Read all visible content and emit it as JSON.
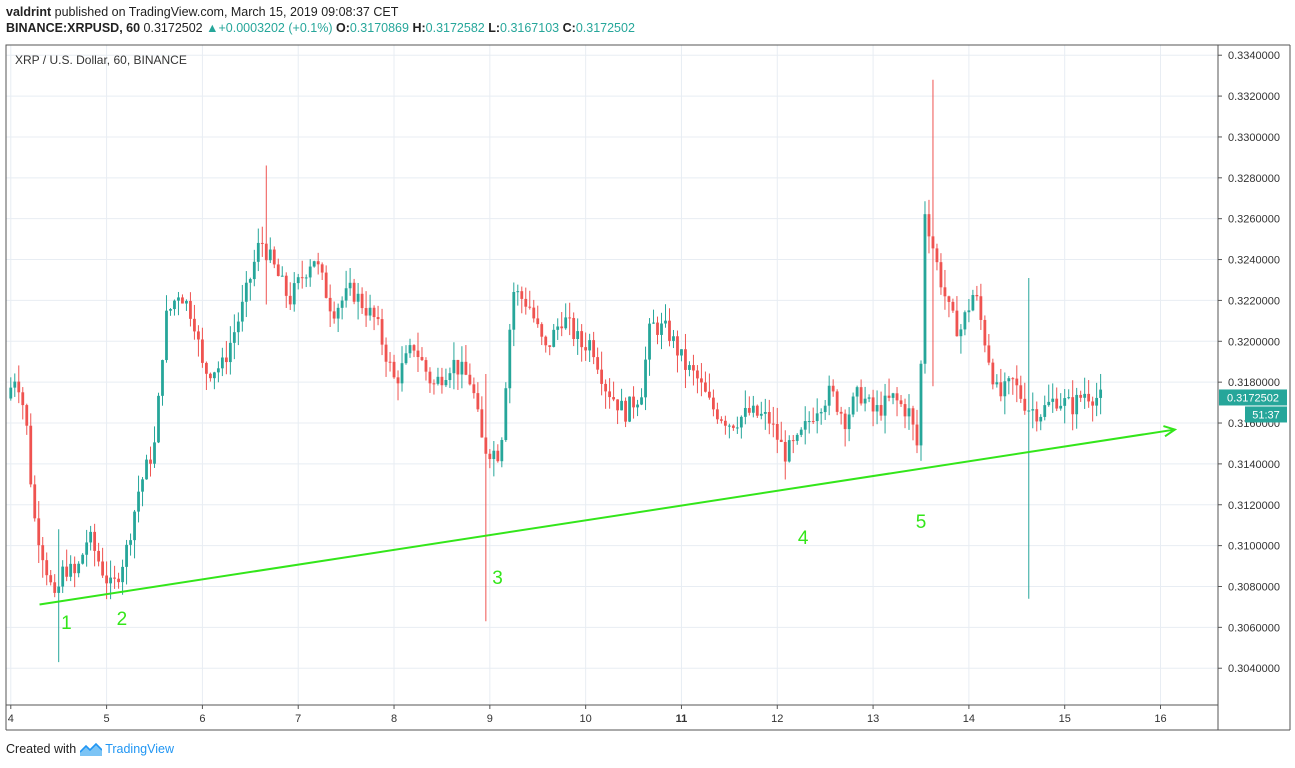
{
  "header": {
    "user": "valdrint",
    "published": " published on TradingView.com, March 15, 2019 09:08:37 CET",
    "symbol": "BINANCE:XRPUSD, 60",
    "last": "0.3172502",
    "change": "+0.0003202 (+0.1%)",
    "o_label": "O:",
    "o_val": "0.3170869",
    "h_label": "H:",
    "h_val": "0.3172582",
    "l_label": "L:",
    "l_val": "0.3167103",
    "c_label": "C:",
    "c_val": "0.3172502"
  },
  "legend_title": "XRP / U.S. Dollar, 60, BINANCE",
  "footer": {
    "created": "Created with",
    "brand": "TradingView",
    "logo_icon": "tradingview-logo-icon"
  },
  "colors": {
    "up": "#26a69a",
    "down": "#ef5350",
    "trend": "#33e61a",
    "grid": "#e8edf3",
    "price_tag": "#26a69a"
  },
  "price_tag": {
    "price": "0.3172502",
    "countdown": "51:37"
  },
  "chart_data": {
    "type": "candlestick",
    "x_ticks": [
      "4",
      "5",
      "6",
      "7",
      "8",
      "9",
      "10",
      "11",
      "12",
      "13",
      "14",
      "15",
      "16"
    ],
    "y_ticks": [
      "0.3340000",
      "0.3320000",
      "0.3300000",
      "0.3280000",
      "0.3260000",
      "0.3240000",
      "0.3220000",
      "0.3200000",
      "0.3180000",
      "0.3160000",
      "0.3140000",
      "0.3120000",
      "0.3100000",
      "0.3080000",
      "0.3060000",
      "0.3040000"
    ],
    "ylim": [
      0.3022,
      0.3345
    ],
    "xlim": [
      3.95,
      16.6
    ],
    "trendline": {
      "start": [
        4.3,
        0.30712
      ],
      "end": [
        16.15,
        0.31568
      ]
    },
    "annotations": [
      {
        "text": "1",
        "x": 4.58,
        "y": 0.30592
      },
      {
        "text": "2",
        "x": 5.16,
        "y": 0.30612
      },
      {
        "text": "3",
        "x": 9.08,
        "y": 0.30812
      },
      {
        "text": "4",
        "x": 12.27,
        "y": 0.31007
      },
      {
        "text": "5",
        "x": 13.5,
        "y": 0.31087
      }
    ],
    "anchors": [
      [
        4.0,
        0.3172
      ],
      [
        4.1,
        0.3185
      ],
      [
        4.2,
        0.3162
      ],
      [
        4.28,
        0.3115
      ],
      [
        4.42,
        0.3088
      ],
      [
        4.5,
        0.3072
      ],
      [
        4.6,
        0.309
      ],
      [
        4.72,
        0.3085
      ],
      [
        4.85,
        0.3105
      ],
      [
        5.0,
        0.3088
      ],
      [
        5.1,
        0.3078
      ],
      [
        5.25,
        0.3098
      ],
      [
        5.38,
        0.3128
      ],
      [
        5.55,
        0.315
      ],
      [
        5.65,
        0.321
      ],
      [
        5.8,
        0.3225
      ],
      [
        5.95,
        0.3212
      ],
      [
        6.05,
        0.3185
      ],
      [
        6.25,
        0.3188
      ],
      [
        6.45,
        0.3215
      ],
      [
        6.65,
        0.325
      ],
      [
        6.8,
        0.3235
      ],
      [
        6.95,
        0.322
      ],
      [
        7.2,
        0.3242
      ],
      [
        7.4,
        0.3215
      ],
      [
        7.6,
        0.3225
      ],
      [
        7.85,
        0.321
      ],
      [
        8.05,
        0.318
      ],
      [
        8.25,
        0.3198
      ],
      [
        8.45,
        0.3178
      ],
      [
        8.65,
        0.319
      ],
      [
        8.85,
        0.318
      ],
      [
        8.97,
        0.3148
      ],
      [
        9.15,
        0.3145
      ],
      [
        9.28,
        0.3225
      ],
      [
        9.45,
        0.3218
      ],
      [
        9.62,
        0.3195
      ],
      [
        9.8,
        0.3212
      ],
      [
        10.0,
        0.3198
      ],
      [
        10.1,
        0.32
      ],
      [
        10.25,
        0.3178
      ],
      [
        10.45,
        0.3165
      ],
      [
        10.62,
        0.3175
      ],
      [
        10.72,
        0.3208
      ],
      [
        10.9,
        0.3205
      ],
      [
        11.08,
        0.3188
      ],
      [
        11.2,
        0.3182
      ],
      [
        11.35,
        0.3168
      ],
      [
        11.55,
        0.316
      ],
      [
        11.75,
        0.3165
      ],
      [
        11.95,
        0.3162
      ],
      [
        12.12,
        0.3145
      ],
      [
        12.25,
        0.315
      ],
      [
        12.45,
        0.3168
      ],
      [
        12.6,
        0.3175
      ],
      [
        12.75,
        0.3162
      ],
      [
        12.9,
        0.3175
      ],
      [
        13.05,
        0.3165
      ],
      [
        13.25,
        0.3172
      ],
      [
        13.42,
        0.3165
      ],
      [
        13.52,
        0.3145
      ],
      [
        13.58,
        0.3265
      ],
      [
        13.72,
        0.3235
      ],
      [
        13.85,
        0.3212
      ],
      [
        13.95,
        0.3205
      ],
      [
        14.1,
        0.3225
      ],
      [
        14.22,
        0.3198
      ],
      [
        14.35,
        0.3172
      ],
      [
        14.5,
        0.318
      ],
      [
        14.65,
        0.3168
      ],
      [
        14.78,
        0.3165
      ],
      [
        14.95,
        0.3172
      ],
      [
        15.12,
        0.3168
      ],
      [
        15.25,
        0.3175
      ],
      [
        15.4,
        0.3172
      ]
    ],
    "spikes": [
      {
        "x": 4.48,
        "low": 0.3043,
        "high": 0.3108
      },
      {
        "x": 6.65,
        "low": 0.3218,
        "high": 0.3286
      },
      {
        "x": 8.97,
        "low": 0.3063,
        "high": 0.3184
      },
      {
        "x": 13.63,
        "low": 0.3178,
        "high": 0.3328
      },
      {
        "x": 14.62,
        "low": 0.3074,
        "high": 0.3231
      }
    ]
  }
}
